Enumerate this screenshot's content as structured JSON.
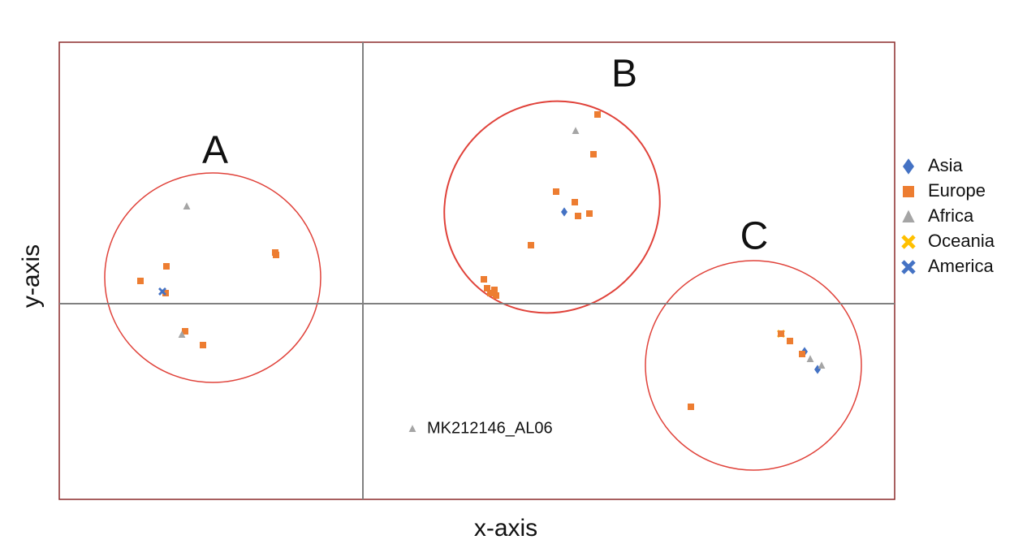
{
  "chart_data": {
    "type": "scatter",
    "x_label": "x-axis",
    "y_label": "y-axis",
    "xlim": [
      -3.74,
      6.55
    ],
    "ylim": [
      -2.41,
      3.22
    ],
    "annotations": [
      "A",
      "B",
      "C",
      "MK212146_AL06"
    ],
    "series": [
      {
        "name": "Asia",
        "color": "#4472c4",
        "marker": "diamond",
        "x": [
          2.48,
          5.44,
          5.6
        ],
        "y": [
          1.13,
          -0.59,
          -0.81
        ]
      },
      {
        "name": "Oceania",
        "color": "#ffc000",
        "marker": "cross",
        "x": [
          5.15
        ],
        "y": [
          -0.37
        ]
      },
      {
        "name": "Europe",
        "color": "#ed7d31",
        "marker": "square",
        "x": [
          -2.74,
          -2.42,
          -1.07,
          -1.08,
          -2.19,
          -1.97,
          -2.43,
          2.89,
          2.84,
          2.38,
          2.61,
          2.65,
          2.79,
          2.07,
          1.49,
          1.53,
          1.57,
          1.62,
          1.64,
          4.04,
          5.15,
          5.26,
          5.41
        ],
        "y": [
          0.28,
          0.46,
          0.6,
          0.63,
          -0.34,
          -0.51,
          0.13,
          2.33,
          1.84,
          1.38,
          1.25,
          1.08,
          1.11,
          0.72,
          0.3,
          0.19,
          0.13,
          0.17,
          0.1,
          -1.27,
          -0.37,
          -0.46,
          -0.62
        ]
      },
      {
        "name": "Africa",
        "color": "#a5a5a5",
        "marker": "triangle",
        "x": [
          -2.17,
          -2.23,
          2.62,
          5.51,
          5.65,
          0.61
        ],
        "y": [
          1.2,
          -0.38,
          2.13,
          -0.68,
          -0.76,
          -1.54
        ]
      },
      {
        "name": "America",
        "color": "#4472c4",
        "marker": "cross",
        "x": [
          -2.47
        ],
        "y": [
          0.15
        ]
      }
    ],
    "legend_order": [
      "Asia",
      "Europe",
      "Africa",
      "Oceania",
      "America"
    ]
  }
}
